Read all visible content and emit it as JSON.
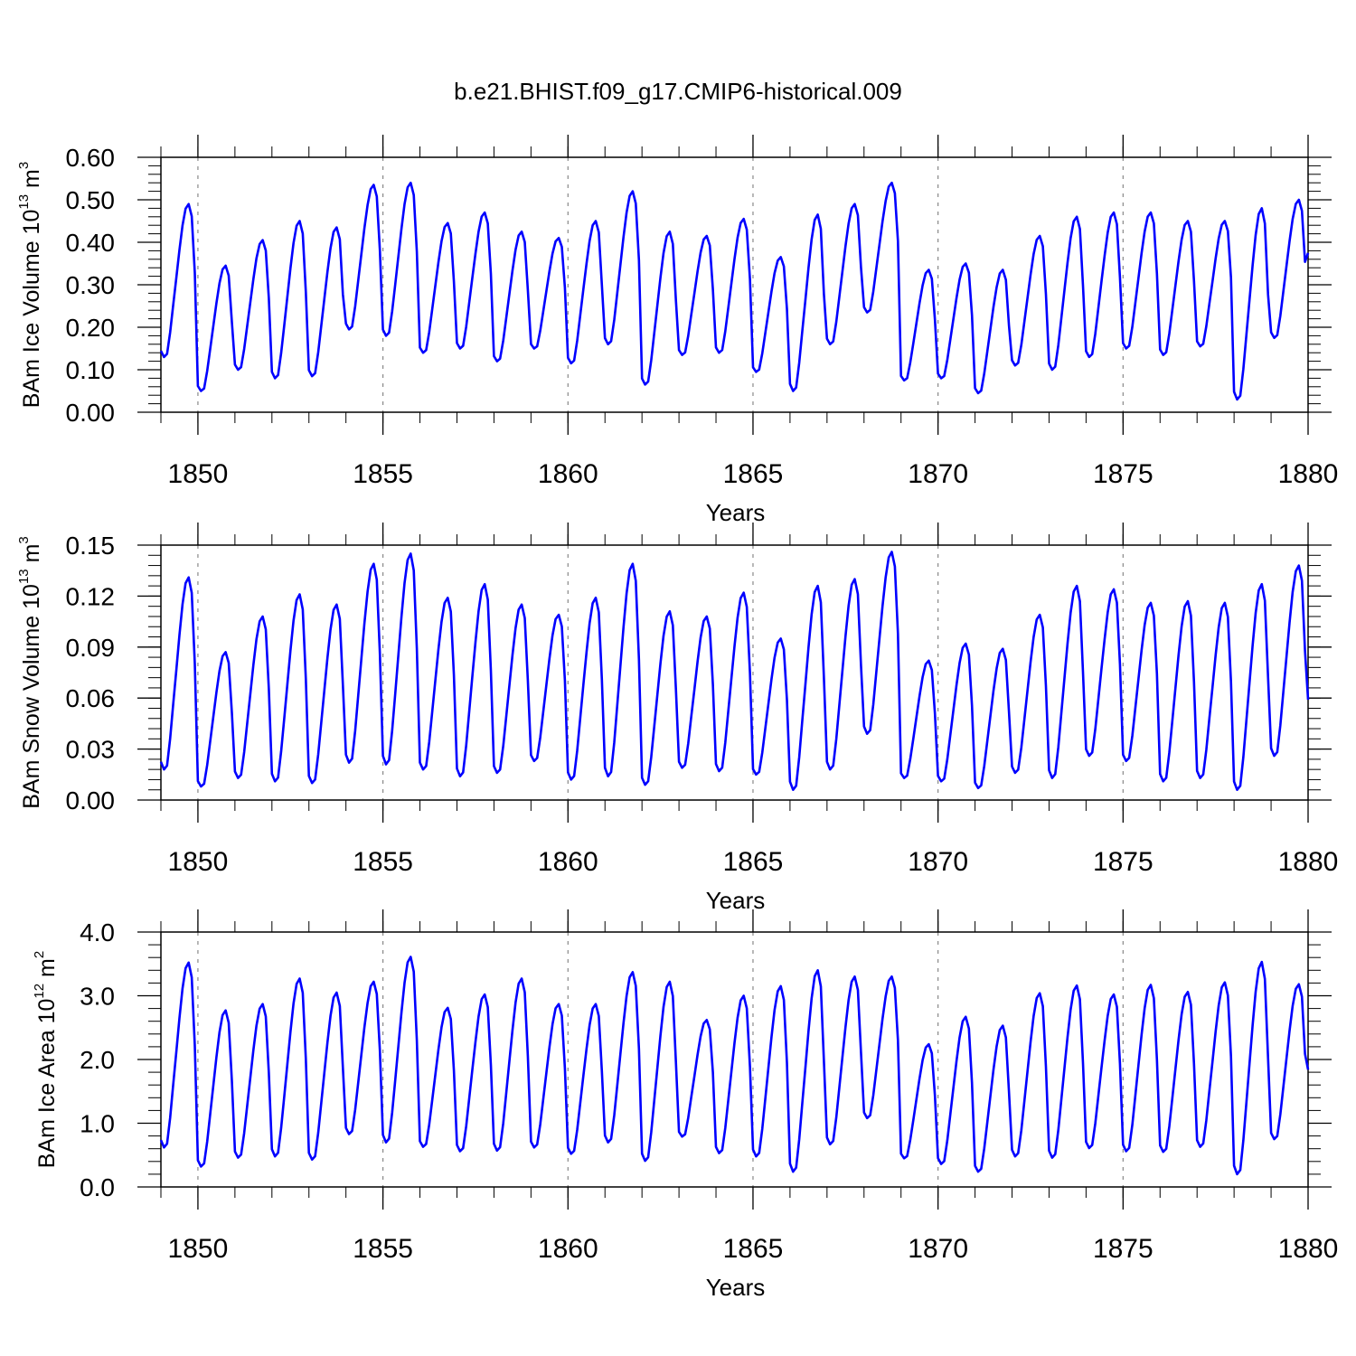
{
  "title": "b.e21.BHIST.f09_g17.CMIP6-historical.009",
  "colors": {
    "line": "#0000ff",
    "axis": "#000000",
    "refline": "#888888"
  },
  "chart_data": [
    {
      "type": "line",
      "ylabel": {
        "text": "BAm Ice Volume 10",
        "exp": "13",
        "unit": " m",
        "unit_exp": "3"
      },
      "xlabel": "Years",
      "xlim": [
        1849,
        1880
      ],
      "ylim": [
        0,
        0.6
      ],
      "yticks": [
        0,
        0.1,
        0.2,
        0.3,
        0.4,
        0.5,
        0.6
      ],
      "ytick_labels": [
        "0.00",
        "0.10",
        "0.20",
        "0.30",
        "0.40",
        "0.50",
        "0.60"
      ],
      "xticks": [
        1850,
        1855,
        1860,
        1865,
        1870,
        1875,
        1880
      ],
      "xtick_labels": [
        "1850",
        "1855",
        "1860",
        "1865",
        "1870",
        "1875",
        "1880"
      ],
      "ref_lines_x": [
        1850,
        1855,
        1860,
        1865,
        1870,
        1875
      ],
      "series": [
        {
          "name": "BAm Ice Volume",
          "start_year": 1849,
          "step_months": 1,
          "annual_max": [
            0.49,
            0.345,
            0.405,
            0.45,
            0.435,
            0.535,
            0.54,
            0.445,
            0.47,
            0.425,
            0.41,
            0.45,
            0.52,
            0.425,
            0.415,
            0.455,
            0.365,
            0.465,
            0.49,
            0.54,
            0.335,
            0.35,
            0.335,
            0.415,
            0.46,
            0.47,
            0.47,
            0.45,
            0.45,
            0.48,
            0.5
          ],
          "annual_min": [
            0.13,
            0.05,
            0.1,
            0.08,
            0.085,
            0.195,
            0.18,
            0.14,
            0.15,
            0.12,
            0.15,
            0.115,
            0.16,
            0.065,
            0.135,
            0.14,
            0.095,
            0.05,
            0.16,
            0.235,
            0.075,
            0.08,
            0.045,
            0.11,
            0.1,
            0.13,
            0.15,
            0.135,
            0.155,
            0.03,
            0.175
          ],
          "end_value": 0.375
        }
      ]
    },
    {
      "type": "line",
      "ylabel": {
        "text": "BAm Snow Volume 10",
        "exp": "13",
        "unit": " m",
        "unit_exp": "3"
      },
      "xlabel": "Years",
      "xlim": [
        1849,
        1880
      ],
      "ylim": [
        0,
        0.15
      ],
      "yticks": [
        0,
        0.03,
        0.06,
        0.09,
        0.12,
        0.15
      ],
      "ytick_labels": [
        "0.00",
        "0.03",
        "0.06",
        "0.09",
        "0.12",
        "0.15"
      ],
      "xticks": [
        1850,
        1855,
        1860,
        1865,
        1870,
        1875,
        1880
      ],
      "xtick_labels": [
        "1850",
        "1855",
        "1860",
        "1865",
        "1870",
        "1875",
        "1880"
      ],
      "ref_lines_x": [
        1850,
        1855,
        1860,
        1865,
        1870,
        1875
      ],
      "series": [
        {
          "name": "BAm Snow Volume",
          "start_year": 1849,
          "step_months": 1,
          "annual_max": [
            0.131,
            0.087,
            0.108,
            0.121,
            0.115,
            0.139,
            0.145,
            0.119,
            0.127,
            0.115,
            0.109,
            0.119,
            0.139,
            0.111,
            0.108,
            0.122,
            0.095,
            0.126,
            0.13,
            0.146,
            0.082,
            0.092,
            0.089,
            0.109,
            0.126,
            0.124,
            0.116,
            0.117,
            0.116,
            0.127,
            0.138
          ],
          "annual_min": [
            0.018,
            0.008,
            0.013,
            0.011,
            0.01,
            0.022,
            0.021,
            0.018,
            0.014,
            0.016,
            0.023,
            0.012,
            0.014,
            0.009,
            0.019,
            0.017,
            0.015,
            0.006,
            0.018,
            0.039,
            0.013,
            0.011,
            0.007,
            0.016,
            0.013,
            0.026,
            0.023,
            0.011,
            0.013,
            0.006,
            0.026
          ],
          "end_value": 0.059
        }
      ]
    },
    {
      "type": "line",
      "ylabel": {
        "text": "BAm Ice Area 10",
        "exp": "12",
        "unit": " m",
        "unit_exp": "2"
      },
      "xlabel": "Years",
      "xlim": [
        1849,
        1880
      ],
      "ylim": [
        0,
        4
      ],
      "yticks": [
        0,
        1,
        2,
        3,
        4
      ],
      "ytick_labels": [
        "0.0",
        "1.0",
        "2.0",
        "3.0",
        "4.0"
      ],
      "xticks": [
        1850,
        1855,
        1860,
        1865,
        1870,
        1875,
        1880
      ],
      "xtick_labels": [
        "1850",
        "1855",
        "1860",
        "1865",
        "1870",
        "1875",
        "1880"
      ],
      "ref_lines_x": [
        1850,
        1855,
        1860,
        1865,
        1870,
        1875
      ],
      "series": [
        {
          "name": "BAm Ice Area",
          "start_year": 1849,
          "step_months": 1,
          "annual_max": [
            3.52,
            2.77,
            2.87,
            3.27,
            3.05,
            3.22,
            3.61,
            2.81,
            3.02,
            3.27,
            2.87,
            2.87,
            3.37,
            3.22,
            2.62,
            3.0,
            3.15,
            3.4,
            3.3,
            3.3,
            2.24,
            2.67,
            2.53,
            3.04,
            3.16,
            3.02,
            3.17,
            3.06,
            3.21,
            3.53,
            3.18
          ],
          "annual_min": [
            0.62,
            0.32,
            0.46,
            0.48,
            0.43,
            0.83,
            0.7,
            0.63,
            0.56,
            0.57,
            0.62,
            0.52,
            0.7,
            0.41,
            0.79,
            0.53,
            0.48,
            0.24,
            0.67,
            1.08,
            0.45,
            0.36,
            0.24,
            0.48,
            0.46,
            0.61,
            0.56,
            0.55,
            0.63,
            0.2,
            0.75
          ],
          "end_value": 1.84
        }
      ]
    }
  ]
}
